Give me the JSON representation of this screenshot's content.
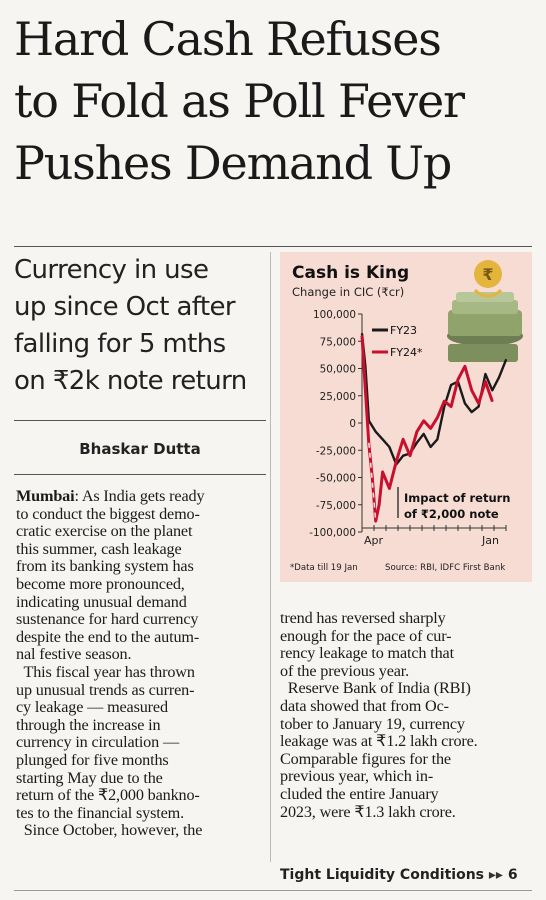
{
  "article": {
    "headline": [
      "Hard Cash Refuses",
      "to Fold as Poll Fever",
      "Pushes Demand Up"
    ],
    "deck": [
      "Currency in use",
      "up since Oct after",
      "falling for 5 mths",
      "on ₹2k note return"
    ],
    "byline": "Bhaskar Dutta",
    "dateline": "Mumbai",
    "col1_lines": [
      ": As India gets ready",
      "to conduct the biggest demo-",
      "cratic exercise on the planet",
      "this summer, cash leakage",
      "from its banking system has",
      "become more pronounced,",
      "indicating unusual demand",
      "sustenance for hard currency",
      "despite the end to the autum-",
      "nal festive season.",
      "  This fiscal year has thrown",
      "up unusual trends as curren-",
      "cy leakage — measured",
      "through the increase in",
      "currency in circulation —",
      "plunged for five months",
      "starting May due to the",
      "return of the ₹2,000 bankno-",
      "tes to the financial system.",
      "  Since October, however, the"
    ],
    "col2_lines": [
      "trend has reversed sharply",
      "enough for the pace of cur-",
      "rency leakage to match that",
      "of the previous year.",
      "  Reserve Bank of India (RBI)",
      "data showed that from Oc-",
      "tober to January 19, currency",
      "leakage was at ₹1.2 lakh crore.",
      "Comparable figures for the",
      "previous year, which in-",
      "cluded the entire January",
      "2023, were ₹1.3 lakh crore."
    ],
    "continuation": "Tight Liquidity Conditions",
    "continuation_page": "6"
  },
  "chart_data": {
    "type": "line",
    "title": "Cash is King",
    "subtitle": "Change in CIC (₹cr)",
    "ylim": [
      -100000,
      100000
    ],
    "y_ticks": [
      100000,
      75000,
      50000,
      25000,
      0,
      -25000,
      -50000,
      -75000,
      -100000
    ],
    "y_tick_labels": [
      "100,000",
      "75,000",
      "50,000",
      "25,000",
      "0",
      "-25,000",
      "-50,000",
      "-75,000",
      "-100,000"
    ],
    "x_tick_labels": [
      "Apr",
      "Jan"
    ],
    "x_range": [
      0,
      42
    ],
    "series": [
      {
        "name": "FY23",
        "color": "#1a1a1a",
        "x": [
          0,
          1,
          2,
          4,
          6,
          8,
          10,
          12,
          14,
          16,
          18,
          20,
          22,
          24,
          26,
          28,
          30,
          32,
          34,
          36,
          38,
          40,
          42
        ],
        "values": [
          82000,
          52000,
          2000,
          -8000,
          -15000,
          -22000,
          -38000,
          -30000,
          -28000,
          -18000,
          -10000,
          -22000,
          -15000,
          15000,
          35000,
          38000,
          18000,
          10000,
          15000,
          45000,
          30000,
          42000,
          58000
        ]
      },
      {
        "name": "FY24*",
        "color": "#c8102e",
        "x": [
          0,
          1,
          2,
          3,
          4,
          5,
          6,
          8,
          10,
          12,
          14,
          16,
          18,
          20,
          22,
          24,
          26,
          28,
          30,
          32,
          34,
          36,
          38
        ],
        "values": [
          80000,
          30000,
          -20000,
          -50000,
          -90000,
          -75000,
          -45000,
          -60000,
          -35000,
          -15000,
          -30000,
          -8000,
          2000,
          -5000,
          5000,
          20000,
          15000,
          40000,
          52000,
          30000,
          18000,
          38000,
          20000
        ]
      }
    ],
    "annotation": [
      "Impact of return",
      "of ₹2,000 note"
    ],
    "footnote": "*Data till 19 Jan",
    "source": "Source: RBI, IDFC First Bank"
  }
}
